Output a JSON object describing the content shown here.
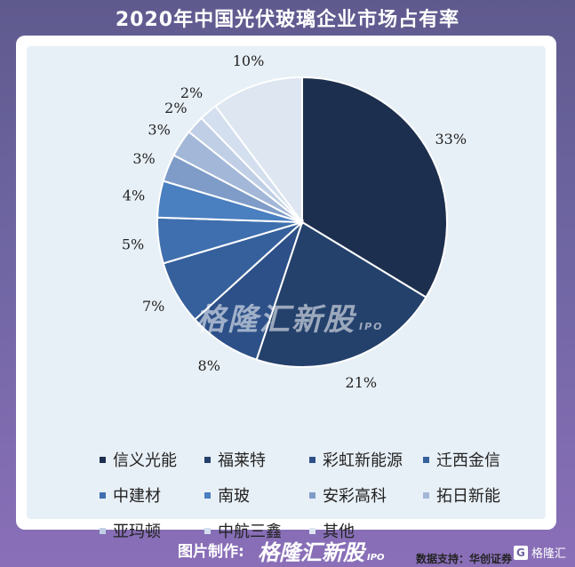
{
  "title": "2020年中国光伏玻璃企业市场占有率",
  "source": "数据支持：华创证券",
  "footer": {
    "label": "图片制作:",
    "brand": "格隆汇新股",
    "brand_suffix": "IPO",
    "corner_logo": "格隆汇"
  },
  "watermark": {
    "text": "格隆汇新股",
    "suffix": "IPO"
  },
  "chart_data": {
    "type": "pie",
    "title": "2020年中国光伏玻璃企业市场占有率",
    "categories": [
      "信义光能",
      "福莱特",
      "彩虹新能源",
      "迁西金信",
      "中建材",
      "南玻",
      "安彩高科",
      "拓日新能",
      "亚玛顿",
      "中航三鑫",
      "其他"
    ],
    "values": [
      33,
      21,
      8,
      7,
      5,
      4,
      3,
      3,
      2,
      2,
      10
    ],
    "labels": [
      "33%",
      "21%",
      "8%",
      "7%",
      "5%",
      "4%",
      "3%",
      "3%",
      "2%",
      "2%",
      "10%"
    ],
    "colors": [
      "#1d2f4e",
      "#24416c",
      "#2d5088",
      "#36609c",
      "#3f6fae",
      "#4a7fc0",
      "#7f9cc8",
      "#a3b8d8",
      "#c0cfe5",
      "#d3dfee",
      "#dde6f1"
    ],
    "legend_position": "bottom"
  }
}
